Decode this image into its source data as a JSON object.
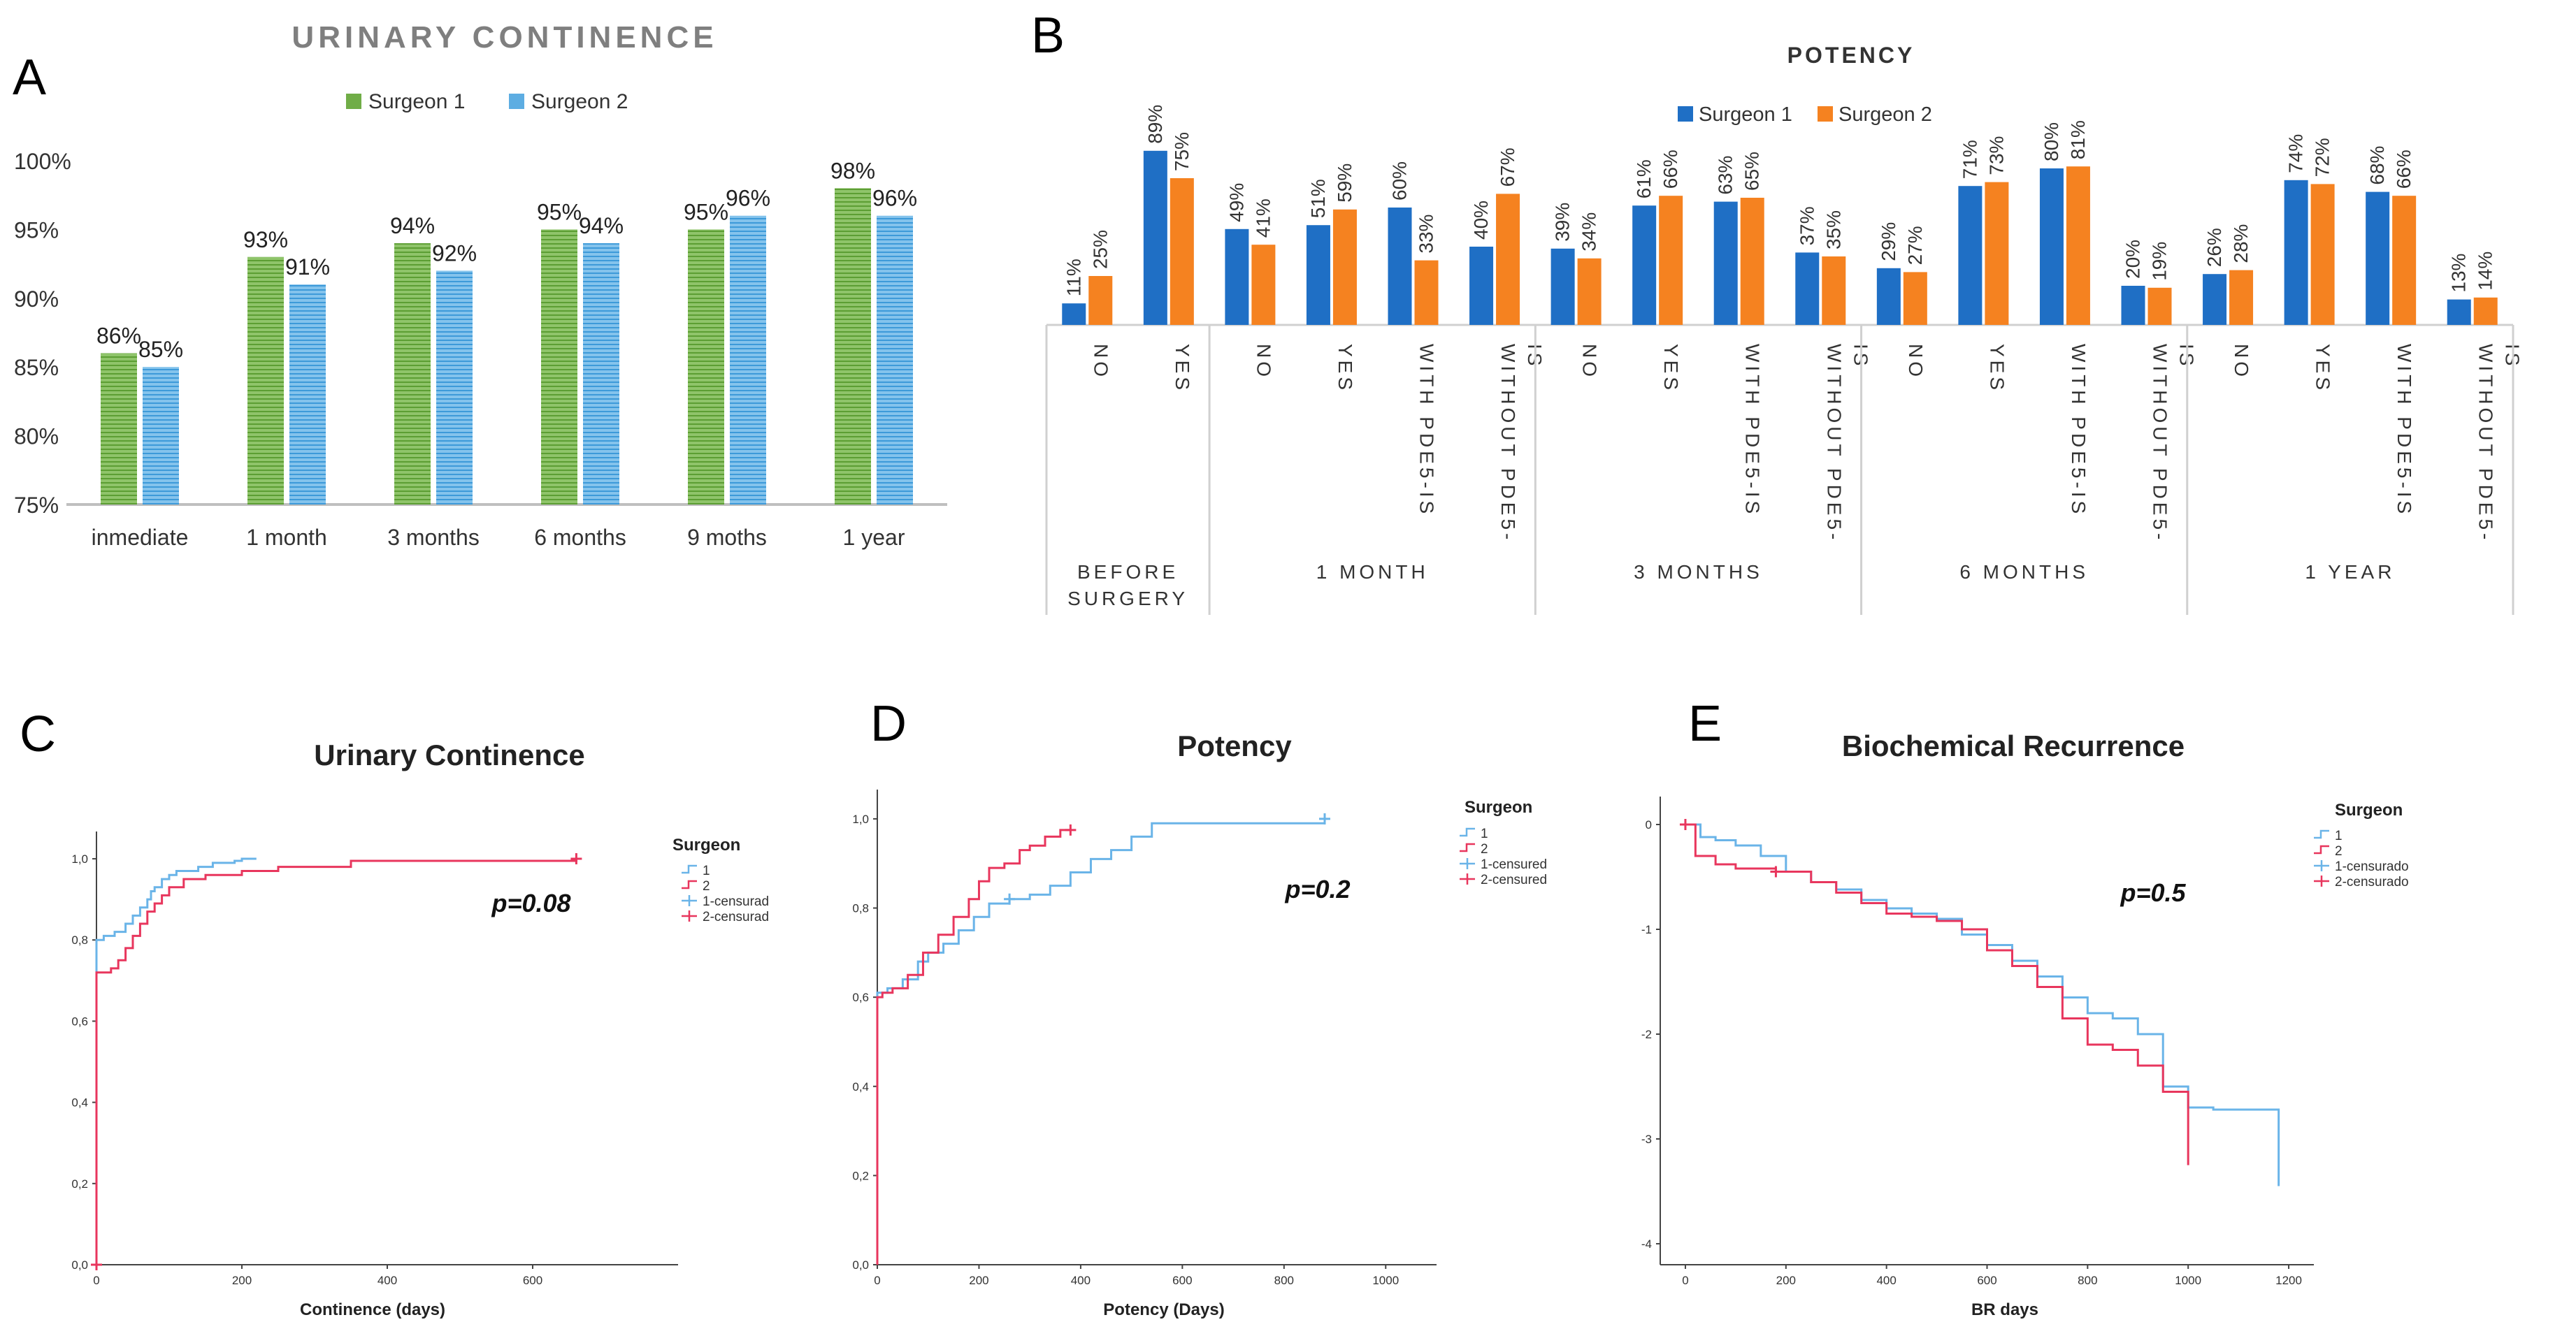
{
  "panel_labels": {
    "A": "A",
    "B": "B",
    "C": "C",
    "D": "D",
    "E": "E"
  },
  "colors": {
    "s1_green": "#70ad47",
    "s2_blue_light": "#5dade2",
    "s1_blue": "#1f6fc5",
    "s2_orange": "#f58220",
    "km_blue": "#6ab4e8",
    "km_red": "#e8365d",
    "grey_title": "#7f7f7f"
  },
  "chart_data": [
    {
      "id": "A",
      "type": "bar",
      "title": "URINARY CONTINENCE",
      "categories": [
        "inmediate",
        "1 month",
        "3 months",
        "6 months",
        "9 moths",
        "1 year"
      ],
      "series": [
        {
          "name": "Surgeon 1",
          "values": [
            86,
            93,
            94,
            95,
            95,
            98
          ]
        },
        {
          "name": "Surgeon 2",
          "values": [
            85,
            91,
            92,
            94,
            96,
            96
          ]
        }
      ],
      "value_labels": [
        [
          "86%",
          "93%",
          "94%",
          "95%",
          "95%",
          "98%"
        ],
        [
          "85%",
          "91%",
          "92%",
          "94%",
          "96%",
          "96%"
        ]
      ],
      "yticks": [
        "75%",
        "80%",
        "85%",
        "90%",
        "95%",
        "100%"
      ],
      "ylim": [
        75,
        100
      ],
      "legend": "top-center"
    },
    {
      "id": "B",
      "type": "bar",
      "title": "POTENCY",
      "series_names": [
        "Surgeon 1",
        "Surgeon 2"
      ],
      "groups": [
        {
          "label_lines": [
            "BEFORE",
            "SURGERY"
          ],
          "items": [
            {
              "cat_lines": [
                "NO"
              ],
              "values": [
                11,
                25
              ]
            },
            {
              "cat_lines": [
                "YES"
              ],
              "values": [
                89,
                75
              ]
            }
          ]
        },
        {
          "label_lines": [
            "1 MONTH"
          ],
          "items": [
            {
              "cat_lines": [
                "NO"
              ],
              "values": [
                49,
                41
              ]
            },
            {
              "cat_lines": [
                "YES"
              ],
              "values": [
                51,
                59
              ]
            },
            {
              "cat_lines": [
                "WITH PDE5-IS"
              ],
              "values": [
                60,
                33
              ]
            },
            {
              "cat_lines": [
                "WITHOUT PDE5-",
                "IS"
              ],
              "values": [
                40,
                67
              ]
            }
          ]
        },
        {
          "label_lines": [
            "3 MONTHS"
          ],
          "items": [
            {
              "cat_lines": [
                "NO"
              ],
              "values": [
                39,
                34
              ]
            },
            {
              "cat_lines": [
                "YES"
              ],
              "values": [
                61,
                66
              ]
            },
            {
              "cat_lines": [
                "WITH PDE5-IS"
              ],
              "values": [
                63,
                65
              ]
            },
            {
              "cat_lines": [
                "WITHOUT PDE5-",
                "IS"
              ],
              "values": [
                37,
                35
              ]
            }
          ]
        },
        {
          "label_lines": [
            "6 MONTHS"
          ],
          "items": [
            {
              "cat_lines": [
                "NO"
              ],
              "values": [
                29,
                27
              ]
            },
            {
              "cat_lines": [
                "YES"
              ],
              "values": [
                71,
                73
              ]
            },
            {
              "cat_lines": [
                "WITH PDE5-IS"
              ],
              "values": [
                80,
                81
              ]
            },
            {
              "cat_lines": [
                "WITHOUT PDE5-",
                "IS"
              ],
              "values": [
                20,
                19
              ]
            }
          ]
        },
        {
          "label_lines": [
            "1 YEAR"
          ],
          "items": [
            {
              "cat_lines": [
                "NO"
              ],
              "values": [
                26,
                28
              ]
            },
            {
              "cat_lines": [
                "YES"
              ],
              "values": [
                74,
                72
              ]
            },
            {
              "cat_lines": [
                "WITH PDE5-IS"
              ],
              "values": [
                68,
                66
              ]
            },
            {
              "cat_lines": [
                "WITHOUT PDE5-",
                "IS"
              ],
              "values": [
                13,
                14
              ]
            }
          ]
        }
      ],
      "value_suffix": "%",
      "legend": "top-center"
    },
    {
      "id": "C",
      "type": "line",
      "title": "Urinary Continence",
      "xlabel": "Continence (days)",
      "ylabel": "",
      "xlim": [
        0,
        800
      ],
      "ylim": [
        0,
        1.05
      ],
      "xticks": [
        "0",
        "200",
        "400",
        "600"
      ],
      "yticks": [
        "0,0",
        "0,2",
        "0,4",
        "0,6",
        "0,8",
        "1,0"
      ],
      "annotation": "p=0.08",
      "legend_title": "Surgeon",
      "legend_entries": [
        "1",
        "2",
        "1-censurad",
        "2-censurad"
      ],
      "series": [
        {
          "name": "1",
          "x": [
            0,
            0,
            10,
            25,
            40,
            50,
            60,
            70,
            75,
            80,
            90,
            100,
            110,
            120,
            140,
            150,
            160,
            170,
            180,
            190,
            200,
            220
          ],
          "y": [
            0,
            0.8,
            0.81,
            0.82,
            0.84,
            0.86,
            0.88,
            0.9,
            0.92,
            0.93,
            0.95,
            0.96,
            0.97,
            0.97,
            0.98,
            0.98,
            0.99,
            0.99,
            0.99,
            0.995,
            1.0,
            1.0
          ]
        },
        {
          "name": "2",
          "x": [
            0,
            0,
            10,
            20,
            30,
            40,
            50,
            60,
            70,
            80,
            90,
            100,
            120,
            150,
            200,
            250,
            350,
            660
          ],
          "y": [
            0,
            0.72,
            0.72,
            0.73,
            0.75,
            0.78,
            0.81,
            0.84,
            0.87,
            0.89,
            0.91,
            0.93,
            0.95,
            0.96,
            0.97,
            0.98,
            0.995,
            1.0
          ]
        }
      ],
      "censored": [
        {
          "series": "2",
          "x": [
            0,
            660
          ],
          "y": [
            0,
            1.0
          ]
        }
      ]
    },
    {
      "id": "D",
      "type": "line",
      "title": "Potency",
      "xlabel": "Potency (Days)",
      "ylabel": "",
      "xlim": [
        0,
        1100
      ],
      "ylim": [
        0,
        1.05
      ],
      "xticks": [
        "0",
        "200",
        "400",
        "600",
        "800",
        "1000"
      ],
      "yticks": [
        "0,0",
        "0,2",
        "0,4",
        "0,6",
        "0,8",
        "1,0"
      ],
      "annotation": "p=0.2",
      "legend_title": "Surgeon",
      "legend_entries": [
        "1",
        "2",
        "1-censured",
        "2-censured"
      ],
      "series": [
        {
          "name": "1",
          "x": [
            0,
            0,
            20,
            50,
            80,
            100,
            130,
            160,
            190,
            220,
            260,
            300,
            340,
            380,
            420,
            460,
            500,
            540,
            880
          ],
          "y": [
            0,
            0.61,
            0.62,
            0.64,
            0.68,
            0.7,
            0.72,
            0.75,
            0.78,
            0.81,
            0.82,
            0.83,
            0.85,
            0.88,
            0.91,
            0.93,
            0.96,
            0.99,
            1.0
          ]
        },
        {
          "name": "2",
          "x": [
            0,
            0,
            10,
            30,
            60,
            90,
            120,
            150,
            180,
            200,
            220,
            250,
            280,
            300,
            330,
            360,
            380
          ],
          "y": [
            0,
            0.6,
            0.61,
            0.62,
            0.65,
            0.7,
            0.74,
            0.78,
            0.82,
            0.86,
            0.89,
            0.9,
            0.93,
            0.94,
            0.96,
            0.975,
            0.975
          ]
        }
      ],
      "censored": [
        {
          "series": "1",
          "x": [
            260,
            880
          ],
          "y": [
            0.82,
            1.0
          ]
        },
        {
          "series": "2",
          "x": [
            380
          ],
          "y": [
            0.975
          ]
        }
      ]
    },
    {
      "id": "E",
      "type": "line",
      "title": "Biochemical Recurrence",
      "xlabel": "BR days",
      "ylabel": "",
      "xlim": [
        -50,
        1250
      ],
      "ylim": [
        -4.2,
        0.2
      ],
      "xticks": [
        "0",
        "200",
        "400",
        "600",
        "800",
        "1000",
        "1200"
      ],
      "yticks": [
        "0",
        "-1",
        "-2",
        "-3",
        "-4"
      ],
      "annotation": "p=0.5",
      "legend_title": "Surgeon",
      "legend_entries": [
        "1",
        "2",
        "1-censurado",
        "2-censurado"
      ],
      "series": [
        {
          "name": "1",
          "x": [
            0,
            30,
            60,
            100,
            150,
            200,
            250,
            300,
            350,
            400,
            450,
            500,
            550,
            600,
            650,
            700,
            750,
            800,
            850,
            900,
            950,
            1000,
            1050,
            1180,
            1180
          ],
          "y": [
            0,
            -0.12,
            -0.15,
            -0.2,
            -0.3,
            -0.45,
            -0.55,
            -0.62,
            -0.72,
            -0.8,
            -0.85,
            -0.9,
            -1.05,
            -1.15,
            -1.3,
            -1.45,
            -1.65,
            -1.8,
            -1.85,
            -2.0,
            -2.5,
            -2.7,
            -2.72,
            -2.72,
            -3.45
          ]
        },
        {
          "name": "2",
          "x": [
            0,
            20,
            60,
            100,
            180,
            250,
            300,
            350,
            400,
            450,
            500,
            550,
            600,
            650,
            700,
            750,
            800,
            850,
            900,
            950,
            1000,
            1000
          ],
          "y": [
            0,
            -0.3,
            -0.38,
            -0.42,
            -0.45,
            -0.55,
            -0.65,
            -0.75,
            -0.85,
            -0.88,
            -0.92,
            -1.0,
            -1.2,
            -1.35,
            -1.55,
            -1.85,
            -2.1,
            -2.15,
            -2.3,
            -2.55,
            -2.6,
            -3.25
          ]
        }
      ],
      "censored": [
        {
          "series": "2",
          "x": [
            0,
            180
          ],
          "y": [
            0,
            -0.45
          ]
        }
      ]
    }
  ]
}
